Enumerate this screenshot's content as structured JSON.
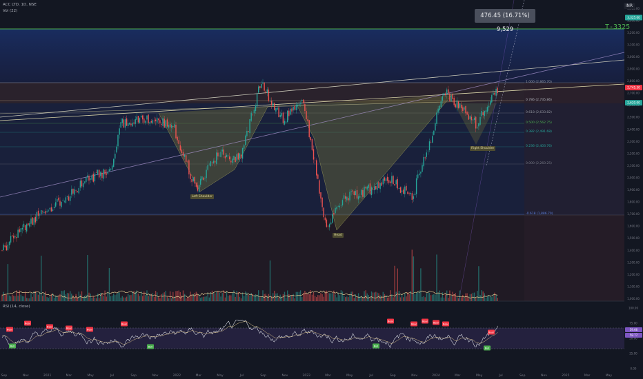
{
  "header": {
    "symbol": "ACC LTD, 1D, NSE",
    "volume_label": "Vol (22)",
    "rsi_label": "RSI (14, close)",
    "settings_label": "INR"
  },
  "measure_box": {
    "text": "476.45 (16.71%) 9,529"
  },
  "target_label": "T-3325",
  "price_axis": {
    "ticks": [
      3400,
      3300,
      3200,
      3100,
      3000,
      2900,
      2800,
      2700,
      2600,
      2500,
      2400,
      2300,
      2200,
      2100,
      2000,
      1900,
      1800,
      1700,
      1600,
      1500,
      1400,
      1300,
      1200,
      1100,
      1000
    ],
    "tick_labels": [
      "3,400.00",
      "3,300.00",
      "3,200.00",
      "3,100.00",
      "3,000.00",
      "2,900.00",
      "2,800.00",
      "2,700.00",
      "2,600.00",
      "2,500.00",
      "2,400.00",
      "2,300.00",
      "2,200.00",
      "2,100.00",
      "2,000.00",
      "1,900.00",
      "1,800.00",
      "1,700.00",
      "1,600.00",
      "1,500.00",
      "1,400.00",
      "1,300.00",
      "1,200.00",
      "1,100.00",
      "1,000.00"
    ],
    "badges": [
      {
        "text": "3,325.00",
        "color": "#26a69a"
      },
      {
        "text": "2,745.30",
        "color": "#f23645"
      },
      {
        "text": "2,620.00",
        "color": "#26a69a"
      }
    ]
  },
  "rsi_axis": {
    "tick_labels": [
      "100.00",
      "75.00",
      "50.00",
      "25.00",
      "0.00"
    ],
    "badges": [
      {
        "text": "59.66",
        "color": "#7e57c2"
      },
      {
        "text": "58.77",
        "color": "#7e57c2"
      }
    ]
  },
  "x_axis": {
    "labels": [
      "Sep",
      "Nov",
      "2021",
      "Mar",
      "May",
      "Jul",
      "Sep",
      "Nov",
      "2022",
      "Mar",
      "May",
      "Jul",
      "Sep",
      "Nov",
      "2023",
      "Mar",
      "May",
      "Jul",
      "Sep",
      "Nov",
      "2024",
      "Mar",
      "May",
      "Jul",
      "Sep",
      "Nov",
      "2025",
      "Mar",
      "May"
    ]
  },
  "fib_levels": [
    {
      "label": "1.000 (2,865.70)"
    },
    {
      "label": "0.786 (2,735.86)"
    },
    {
      "label": "0.618 (2,633.82)"
    },
    {
      "label": "0.500 (2,562.75)"
    },
    {
      "label": "0.382 (2,491.68)"
    },
    {
      "label": "0.236 (2,403.76)"
    },
    {
      "label": "0.000 (2,260.25)"
    },
    {
      "label": "-0.618 (1,886.70)"
    }
  ],
  "pattern_labels": {
    "left_shoulder": "Left Shoulder",
    "head": "Head",
    "right_shoulder": "Right Shoulder"
  },
  "rsi_tags": [
    "Bear",
    "Bear",
    "Bear",
    "Bull",
    "Bear",
    "Bear",
    "Bull",
    "Bear",
    "Bull",
    "Bear",
    "Bear",
    "Bear",
    "Bear",
    "Bear",
    "Bull",
    "Bear"
  ],
  "chart_data": {
    "type": "line",
    "title": "ACC LTD, 1D, NSE",
    "xlabel": "",
    "ylabel": "",
    "ylim": [
      980,
      3470
    ],
    "grid": false,
    "series": [
      {
        "name": "",
        "x": [
          "2020-09",
          "2020-11",
          "2021-01",
          "2021-03",
          "2021-05",
          "2021-07",
          "2021-08",
          "2021-09",
          "2021-11",
          "2022-01",
          "2022-03",
          "2022-05",
          "2022-07",
          "2022-09",
          "2022-11",
          "2023-01",
          "2023-03",
          "2023-05",
          "2023-07",
          "2023-09",
          "2023-11",
          "2024-01",
          "2024-02",
          "2024-03",
          "2024-05",
          "2024-06",
          "2024-07"
        ],
        "values": [
          1400,
          1600,
          1720,
          1840,
          2000,
          2050,
          2440,
          2480,
          2500,
          2400,
          1900,
          2200,
          2150,
          2780,
          2480,
          2620,
          1600,
          1850,
          1900,
          2000,
          1830,
          2400,
          2720,
          2620,
          2440,
          2620,
          2745
        ]
      }
    ]
  }
}
